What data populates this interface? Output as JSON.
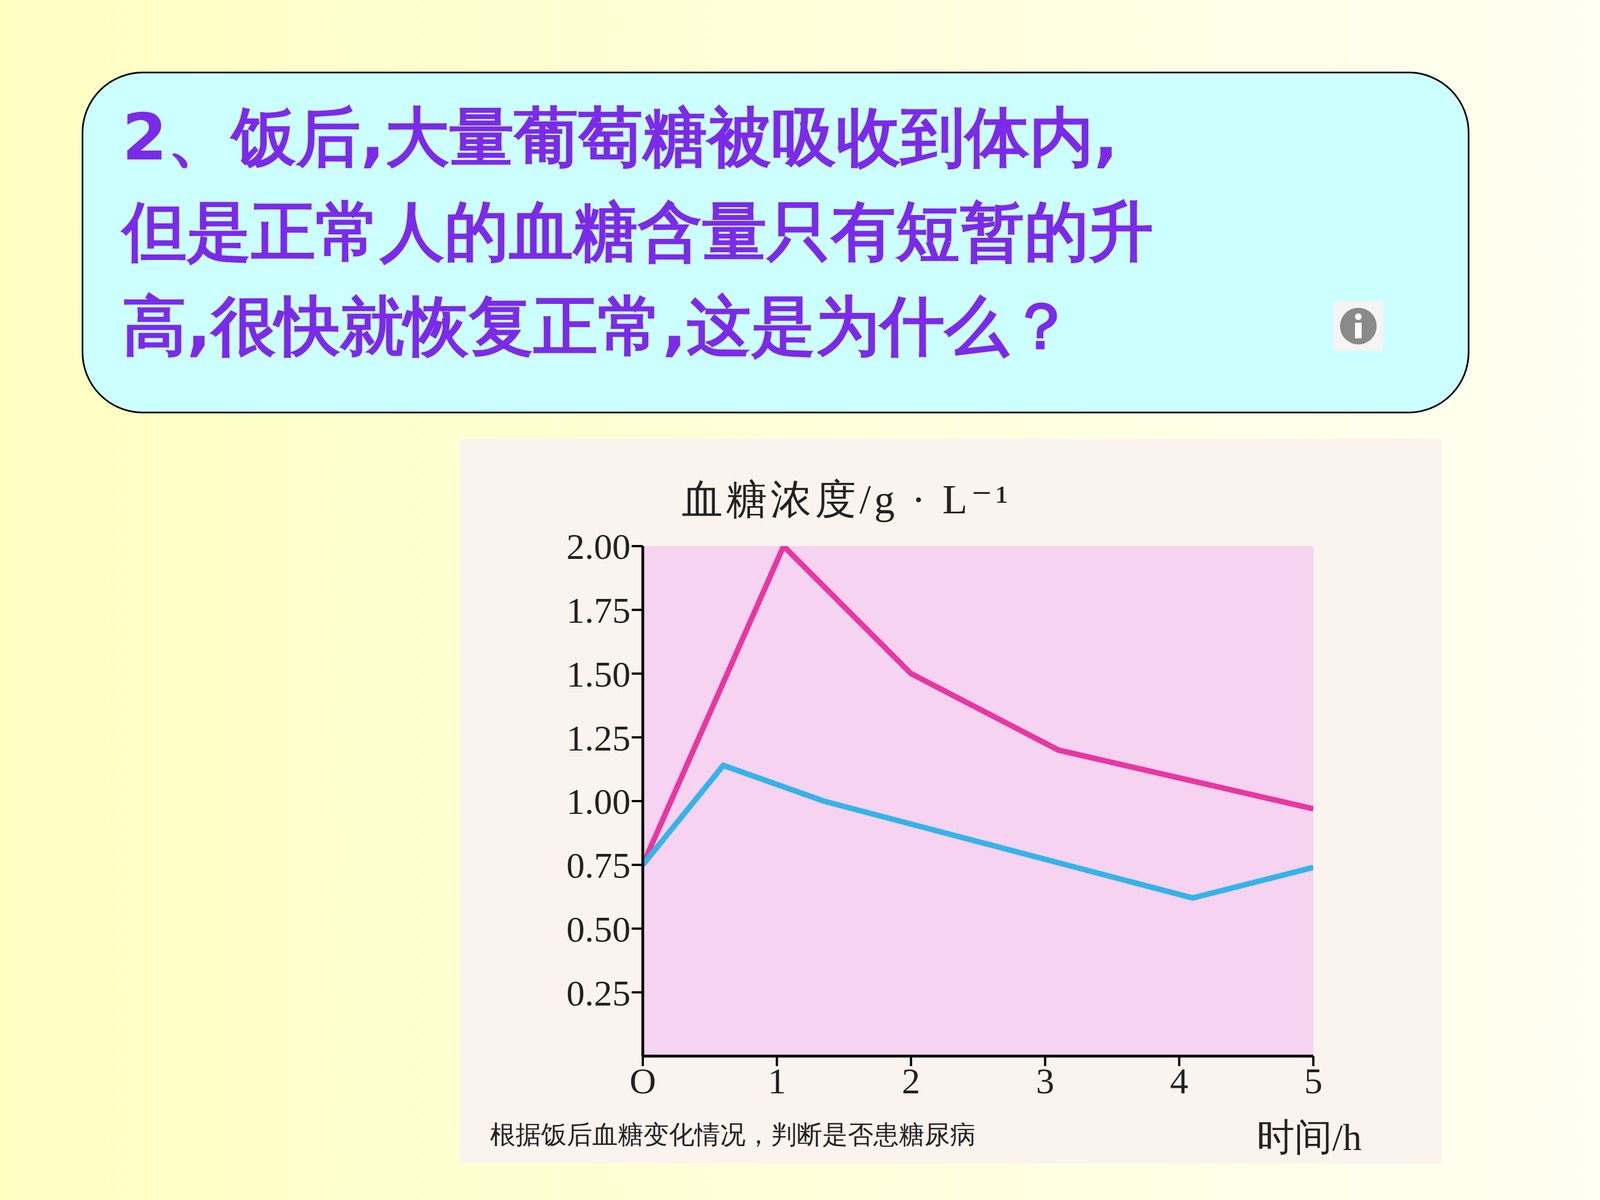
{
  "chart_data": {
    "type": "line",
    "title": "2、饭后,大量葡萄糖被吸收到体内,\n但是正常人的血糖含量只有短暂的升\n高,很快就恢复正常,这是为什么？",
    "ylabel": "血糖浓度/g · L⁻¹",
    "xlabel": "时间/h",
    "annotations": [
      "根据饭后血糖变化情况，判断是否患糖尿病"
    ],
    "series": [
      {
        "color": "#e8379f",
        "x": [
          0,
          1.05,
          2,
          3.1,
          5
        ],
        "values": [
          0.75,
          2.0,
          1.5,
          1.2,
          0.97
        ]
      },
      {
        "color": "#35b4e8",
        "x": [
          0,
          0.6,
          1.35,
          4.1,
          5
        ],
        "values": [
          0.75,
          1.14,
          1.0,
          0.62,
          0.74
        ]
      }
    ],
    "xlim": [
      0,
      5
    ],
    "xticks": [
      {
        "value": 0,
        "label": "O"
      },
      1,
      2,
      3,
      4,
      5
    ],
    "ylim": [
      0,
      2
    ],
    "yticks": [
      0.25,
      {
        "value": 0.5,
        "label": "0.50"
      },
      0.75,
      {
        "value": 1,
        "label": "1.00"
      },
      1.25,
      {
        "value": 1.5,
        "label": "1.50"
      },
      1.75,
      {
        "value": 2,
        "label": "2.00"
      }
    ],
    "grid": false
  }
}
